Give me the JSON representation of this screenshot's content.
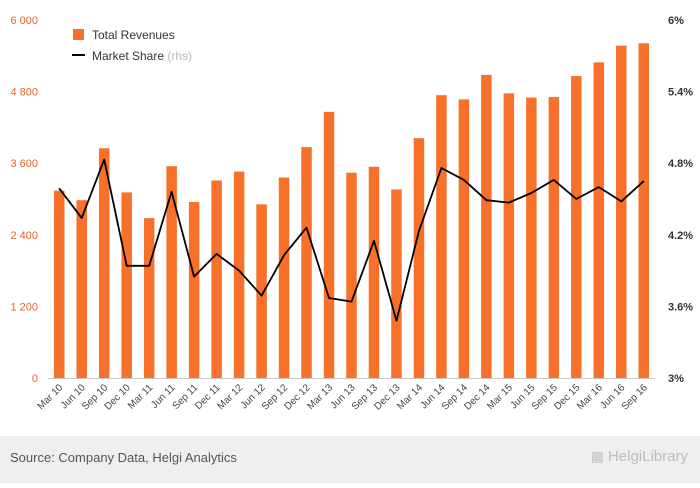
{
  "chart_data": {
    "type": "bar",
    "categories": [
      "Mar 10",
      "Jun 10",
      "Sep 10",
      "Dec 10",
      "Mar 11",
      "Jun 11",
      "Sep 11",
      "Dec 11",
      "Mar 12",
      "Jun 12",
      "Sep 12",
      "Dec 12",
      "Mar 13",
      "Jun 13",
      "Sep 13",
      "Dec 13",
      "Mar 14",
      "Jun 14",
      "Sep 14",
      "Dec 14",
      "Mar 15",
      "Jun 15",
      "Sep 15",
      "Dec 15",
      "Mar 16",
      "Jun 16",
      "Sep 16"
    ],
    "series": [
      {
        "name": "Total Revenues",
        "type": "bar",
        "axis": "left",
        "color": "#f7712b",
        "values": [
          3140,
          2980,
          3850,
          3110,
          2680,
          3550,
          2950,
          3310,
          3460,
          2910,
          3360,
          3870,
          4460,
          3440,
          3540,
          3160,
          4020,
          4740,
          4670,
          5080,
          4770,
          4700,
          4710,
          5060,
          5290,
          5570,
          5610
        ]
      },
      {
        "name": "Market Share",
        "name_suffix": "(rhs)",
        "type": "line",
        "axis": "right",
        "color": "#000000",
        "values": [
          4.59,
          4.34,
          4.83,
          3.94,
          3.94,
          4.56,
          3.85,
          4.04,
          3.9,
          3.69,
          4.03,
          4.26,
          3.67,
          3.64,
          4.15,
          3.48,
          4.23,
          4.76,
          4.66,
          4.49,
          4.47,
          4.55,
          4.66,
          4.5,
          4.6,
          4.48,
          4.65
        ]
      }
    ],
    "left_axis": {
      "ylim": [
        0,
        6000
      ],
      "ticks": [
        "0",
        "1 200",
        "2 400",
        "3 600",
        "4 800",
        "6 000"
      ],
      "color": "#e8632a"
    },
    "right_axis": {
      "ylim": [
        3,
        6
      ],
      "ticks": [
        "3%",
        "3.6%",
        "4.2%",
        "4.8%",
        "5.4%",
        "6%"
      ]
    },
    "legend_position": "top-left",
    "grid": false
  },
  "footer": {
    "source": "Source: Company Data, Helgi Analytics",
    "brand": "HelgiLibrary"
  }
}
